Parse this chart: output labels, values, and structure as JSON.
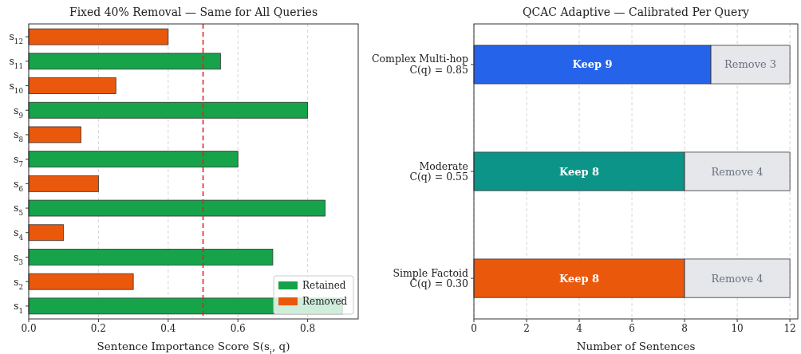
{
  "chart_data": [
    {
      "type": "bar",
      "orientation": "horizontal",
      "title": "Fixed 40% Removal — Same for All Queries",
      "xlabel": "Sentence Importance Score S(s$_{i}$, q)",
      "categories": [
        "s$_{12}$",
        "s$_{11}$",
        "s$_{10}$",
        "s$_{9}$",
        "s$_{8}$",
        "s$_{7}$",
        "s$_{6}$",
        "s$_{5}$",
        "s$_{4}$",
        "s$_{3}$",
        "s$_{2}$",
        "s$_{1}$"
      ],
      "series": [
        {
          "name": "Retained",
          "color": "#16a34a",
          "values": [
            null,
            0.55,
            null,
            0.8,
            null,
            0.6,
            null,
            0.85,
            null,
            0.7,
            null,
            0.9
          ]
        },
        {
          "name": "Removed",
          "color": "#ea580c",
          "values": [
            0.4,
            null,
            0.25,
            null,
            0.15,
            null,
            0.2,
            null,
            0.1,
            null,
            0.3,
            null
          ]
        }
      ],
      "xlim": [
        0,
        0.945
      ],
      "xticks": [
        {
          "value": 0,
          "label": "0.0"
        },
        0.2,
        0.4,
        0.6,
        0.8
      ],
      "ref_lines": [
        {
          "axis": "x",
          "value": 0.5,
          "color": "#dc2626",
          "line_style": "dashed"
        }
      ],
      "grid": "x",
      "legend": "bottom right"
    },
    {
      "type": "bar",
      "orientation": "horizontal",
      "stacked": true,
      "title": "QCAC Adaptive — Calibrated Per Query",
      "xlabel": "Number of Sentences",
      "categories": [
        "Complex Multi-hop\nC(q) = 0.85",
        "Moderate\nC(q) = 0.55",
        "Simple Factoid\nC(q) = 0.30"
      ],
      "series": [
        {
          "colors": [
            "#2563eb",
            "#0d9488",
            "#ea580c"
          ],
          "values": [
            9,
            8,
            8
          ],
          "value_labels": [
            "Keep 9",
            "Keep 8",
            "Keep 8"
          ]
        },
        {
          "color": "#e5e7eb",
          "values": [
            3,
            4,
            4
          ],
          "value_labels": [
            "Remove 3",
            "Remove 4",
            "Remove 4"
          ]
        }
      ],
      "xlim": [
        0,
        12.3
      ],
      "xticks": [
        0,
        2,
        4,
        6,
        8,
        10,
        12
      ],
      "grid": "x",
      "legend": false
    }
  ]
}
